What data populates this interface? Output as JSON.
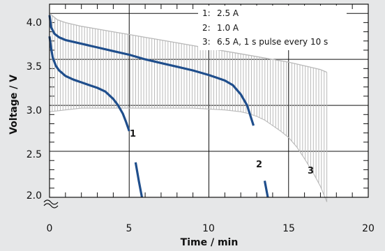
{
  "chart_data": {
    "type": "line",
    "xlabel": "Time / min",
    "ylabel": "Voltage / V",
    "xlim": [
      0,
      20
    ],
    "ylim": [
      2.0,
      4.1
    ],
    "x_ticks": [
      "0",
      "5",
      "10",
      "15",
      "20"
    ],
    "y_ticks": [
      "2.0",
      "2.5",
      "3.0",
      "3.5",
      "4.0"
    ],
    "grid": true,
    "legend_position": "top-right",
    "legend": [
      {
        "num": "1:",
        "text": "2.5 A"
      },
      {
        "num": "2:",
        "text": "1.0 A"
      },
      {
        "num": "3:",
        "text": "6.5 A, 1 s pulse every 10 s"
      }
    ],
    "series": [
      {
        "label": "1",
        "color": "#1f4e8c",
        "x": [
          0,
          0.1,
          0.2,
          0.4,
          0.6,
          0.8,
          1.0,
          1.5,
          2.0,
          2.5,
          3.0,
          3.5,
          4.0,
          4.3,
          4.6,
          4.8,
          5.0,
          5.2,
          5.4,
          5.6,
          5.8
        ],
        "y": [
          3.75,
          3.62,
          3.52,
          3.43,
          3.38,
          3.35,
          3.32,
          3.28,
          3.25,
          3.22,
          3.19,
          3.15,
          3.07,
          3.0,
          2.91,
          2.82,
          2.72,
          2.55,
          2.38,
          2.18,
          2.0
        ],
        "gaps": [
          [
            5.0,
            5.3
          ]
        ]
      },
      {
        "label": "2",
        "color": "#1f4e8c",
        "x": [
          0,
          0.1,
          0.3,
          0.6,
          1.0,
          2.0,
          3.0,
          4.0,
          5.0,
          6.0,
          7.0,
          8.0,
          9.0,
          10.0,
          10.5,
          11.0,
          11.5,
          12.0,
          12.4,
          12.8,
          13.1,
          13.3,
          13.5,
          13.7
        ],
        "y": [
          3.98,
          3.85,
          3.78,
          3.74,
          3.71,
          3.67,
          3.63,
          3.59,
          3.55,
          3.5,
          3.46,
          3.42,
          3.38,
          3.33,
          3.3,
          3.27,
          3.22,
          3.12,
          3.0,
          2.78,
          2.55,
          2.38,
          2.18,
          2.0
        ],
        "gaps": [
          [
            12.9,
            13.4
          ]
        ]
      },
      {
        "label": "3",
        "color": "#b9b9b9",
        "upper_x": [
          0,
          0.5,
          1,
          2,
          3,
          4,
          5,
          6,
          7,
          8,
          9,
          10,
          11,
          12,
          13,
          14,
          15,
          16,
          16.5,
          17,
          17.4
        ],
        "upper_y": [
          4.0,
          3.93,
          3.9,
          3.86,
          3.83,
          3.8,
          3.77,
          3.74,
          3.71,
          3.68,
          3.65,
          3.62,
          3.59,
          3.56,
          3.53,
          3.5,
          3.47,
          3.43,
          3.41,
          3.39,
          3.36
        ],
        "lower_x": [
          0,
          1,
          2,
          3,
          4,
          5,
          6,
          7,
          8,
          9,
          10,
          11,
          12,
          12.5,
          13,
          13.5,
          14,
          14.5,
          15,
          15.5,
          16,
          16.5,
          17,
          17.4
        ],
        "lower_y": [
          2.93,
          2.95,
          2.97,
          2.97,
          2.97,
          2.97,
          2.97,
          2.97,
          2.97,
          2.97,
          2.96,
          2.95,
          2.93,
          2.91,
          2.88,
          2.84,
          2.78,
          2.72,
          2.65,
          2.55,
          2.42,
          2.28,
          2.12,
          1.95
        ],
        "pulse_count": 104,
        "x_end": 17.4
      }
    ]
  }
}
